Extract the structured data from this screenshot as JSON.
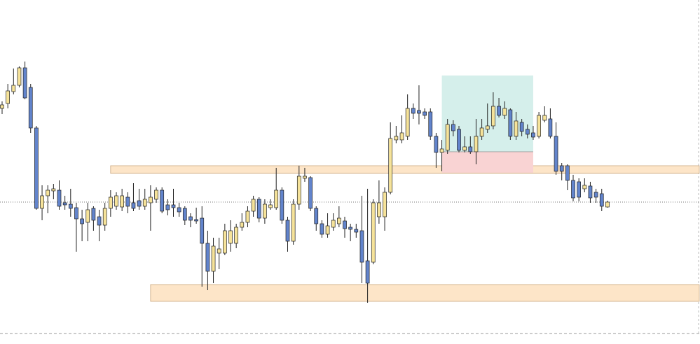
{
  "chart_data": {
    "type": "candlestick",
    "ylim": [
      8,
      500
    ],
    "up_color": "#f6e39a",
    "down_color": "#6284cc",
    "wick_color": "#222222",
    "open": [
      345,
      352,
      369,
      378,
      403,
      375,
      317,
      202,
      220,
      227,
      228,
      210,
      208,
      203,
      187,
      182,
      202,
      190,
      178,
      202,
      205,
      204,
      218,
      210,
      213,
      205,
      210,
      215,
      228,
      207,
      207,
      203,
      202,
      190,
      186,
      188,
      152,
      112,
      138,
      138,
      152,
      152,
      175,
      182,
      198,
      215,
      188,
      203,
      203,
      228,
      185,
      155,
      208,
      245,
      246,
      202,
      180,
      165,
      175,
      180,
      184,
      175,
      172,
      170,
      127,
      125,
      190,
      190,
      225,
      300,
      300,
      305,
      345,
      342,
      340,
      340,
      305,
      282,
      285,
      322,
      315,
      285,
      290,
      283,
      305,
      315,
      320,
      348,
      335,
      343,
      305,
      325,
      315,
      310,
      305,
      328,
      330,
      305,
      263,
      263,
      242,
      240,
      230,
      234,
      225,
      223,
      204
    ],
    "high": [
      355,
      380,
      402,
      405,
      412,
      380,
      320,
      235,
      235,
      237,
      242,
      220,
      230,
      210,
      200,
      210,
      205,
      200,
      210,
      228,
      225,
      230,
      225,
      238,
      230,
      230,
      235,
      232,
      232,
      215,
      230,
      210,
      205,
      195,
      203,
      205,
      170,
      160,
      160,
      180,
      185,
      180,
      195,
      205,
      220,
      218,
      215,
      215,
      260,
      232,
      190,
      215,
      263,
      260,
      248,
      205,
      185,
      195,
      195,
      205,
      190,
      180,
      180,
      220,
      230,
      215,
      242,
      232,
      325,
      320,
      335,
      365,
      352,
      378,
      345,
      345,
      310,
      300,
      330,
      328,
      320,
      305,
      305,
      330,
      330,
      352,
      368,
      360,
      355,
      345,
      340,
      330,
      322,
      320,
      340,
      348,
      345,
      325,
      267,
      265,
      250,
      245,
      245,
      240,
      230,
      230,
      213
    ],
    "low": [
      337,
      345,
      365,
      375,
      358,
      310,
      200,
      185,
      195,
      215,
      200,
      200,
      190,
      140,
      155,
      155,
      170,
      155,
      170,
      190,
      200,
      198,
      195,
      198,
      200,
      200,
      170,
      210,
      195,
      192,
      190,
      190,
      178,
      175,
      180,
      90,
      85,
      95,
      115,
      135,
      140,
      145,
      170,
      175,
      190,
      182,
      180,
      200,
      200,
      180,
      140,
      150,
      200,
      240,
      198,
      170,
      160,
      160,
      170,
      175,
      160,
      155,
      160,
      95,
      67,
      122,
      180,
      170,
      222,
      295,
      295,
      300,
      330,
      322,
      330,
      300,
      260,
      255,
      280,
      305,
      282,
      282,
      280,
      265,
      300,
      310,
      315,
      332,
      330,
      300,
      300,
      305,
      302,
      300,
      302,
      325,
      302,
      250,
      242,
      228,
      212,
      212,
      225,
      210,
      210,
      198,
      203
    ],
    "close": [
      350,
      370,
      378,
      403,
      360,
      317,
      202,
      220,
      228,
      230,
      205,
      207,
      202,
      187,
      180,
      200,
      185,
      178,
      202,
      218,
      220,
      220,
      205,
      202,
      205,
      215,
      218,
      228,
      198,
      200,
      203,
      197,
      185,
      185,
      184,
      152,
      112,
      148,
      144,
      170,
      170,
      175,
      182,
      198,
      215,
      188,
      208,
      207,
      228,
      185,
      155,
      208,
      248,
      248,
      202,
      180,
      165,
      177,
      185,
      188,
      173,
      172,
      168,
      125,
      95,
      210,
      210,
      225,
      302,
      305,
      310,
      345,
      338,
      338,
      335,
      305,
      282,
      287,
      322,
      313,
      285,
      290,
      283,
      305,
      317,
      320,
      348,
      335,
      345,
      305,
      327,
      312,
      308,
      304,
      335,
      335,
      305,
      255,
      255,
      242,
      217,
      218,
      235,
      217,
      218,
      205,
      211
    ],
    "zones": [
      {
        "from": 19,
        "low": 252,
        "high": 263,
        "color": "#fde5c8"
      },
      {
        "from": 26,
        "low": 69,
        "high": 93,
        "color": "#fde5c8"
      }
    ],
    "position": {
      "from": 77,
      "to": 93,
      "entry": 283,
      "target": 392,
      "stop": 253,
      "target_color": "#d5efeb",
      "stop_color": "#f9d3d3"
    }
  }
}
